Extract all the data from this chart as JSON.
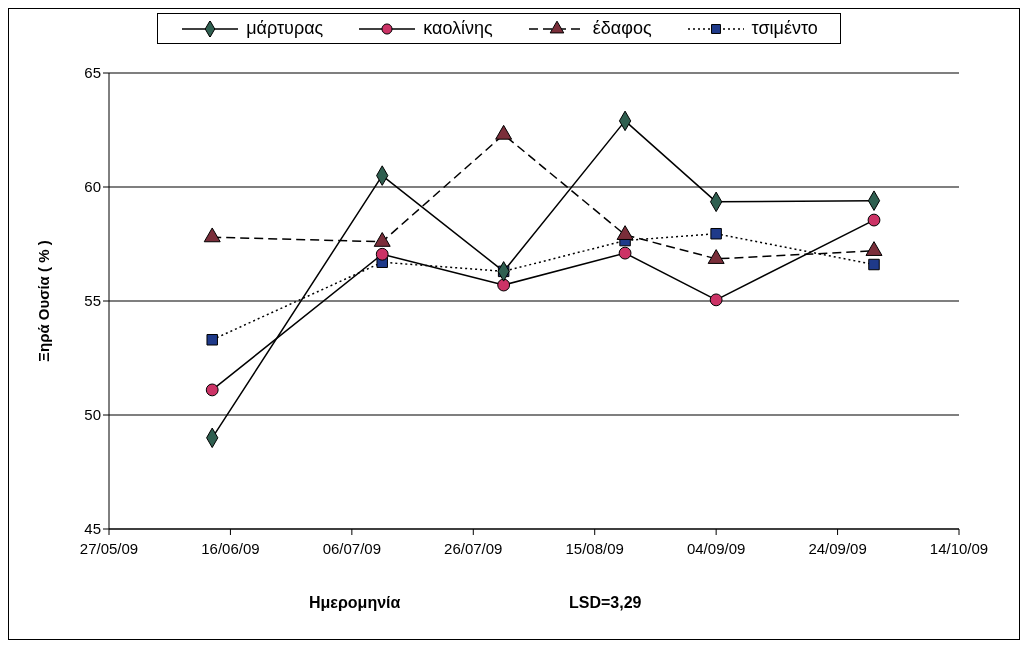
{
  "chart_data": {
    "type": "line",
    "xlabel": "Ημερομηνία",
    "ylabel": "Ξηρά Ουσία ( % )",
    "annotations": [
      "LSD=3,29"
    ],
    "x": [
      "2009-06-13",
      "2009-07-11",
      "2009-07-31",
      "2009-08-20",
      "2009-09-04",
      "2009-09-30"
    ],
    "series": [
      {
        "name": "μάρτυρας",
        "color": "#2f5f50",
        "marker": "diamond",
        "line_style": "solid",
        "values": [
          49.0,
          60.5,
          56.3,
          62.9,
          59.35,
          59.4
        ]
      },
      {
        "name": "καολίνης",
        "color": "#cc3366",
        "marker": "circle",
        "line_style": "solid",
        "values": [
          51.1,
          57.05,
          55.7,
          57.1,
          55.05,
          58.55
        ]
      },
      {
        "name": "έδαφος",
        "color": "#7a2e3a",
        "marker": "triangle",
        "line_style": "dashed",
        "values": [
          57.8,
          57.6,
          62.3,
          57.9,
          56.85,
          57.2
        ]
      },
      {
        "name": "τσιμέντο",
        "color": "#1f3a8a",
        "marker": "square",
        "line_style": "dotted",
        "values": [
          53.3,
          56.7,
          56.3,
          57.65,
          57.95,
          56.6
        ]
      }
    ],
    "xlim": [
      "2009-05-27",
      "2009-10-14"
    ],
    "xticks": [
      {
        "value": "2009-05-27",
        "label": "27/05/09"
      },
      {
        "value": "2009-06-16",
        "label": "16/06/09"
      },
      {
        "value": "2009-07-06",
        "label": "06/07/09"
      },
      {
        "value": "2009-07-26",
        "label": "26/07/09"
      },
      {
        "value": "2009-08-15",
        "label": "15/08/09"
      },
      {
        "value": "2009-09-04",
        "label": "04/09/09"
      },
      {
        "value": "2009-09-24",
        "label": "24/09/09"
      },
      {
        "value": "2009-10-14",
        "label": "14/10/09"
      }
    ],
    "ylim": [
      45,
      65
    ],
    "yticks": [
      45,
      50,
      55,
      60,
      65
    ],
    "grid": "y",
    "legend": "top"
  }
}
